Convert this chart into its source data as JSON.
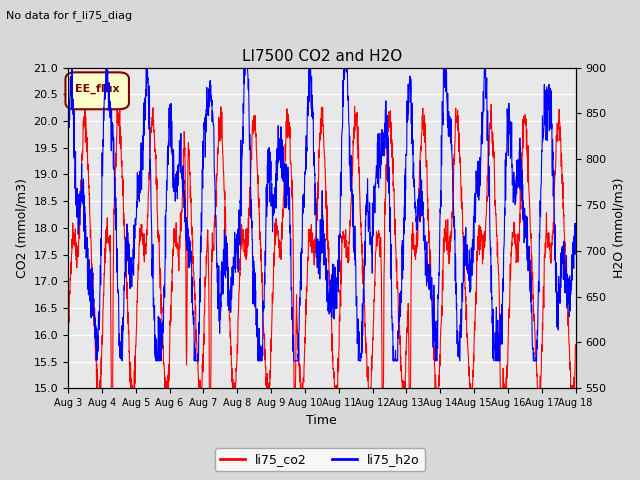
{
  "title": "LI7500 CO2 and H2O",
  "suptitle": "No data for f_li75_diag",
  "xlabel": "Time",
  "ylabel_left": "CO2 (mmol/m3)",
  "ylabel_right": "H2O (mmol/m3)",
  "ylim_left": [
    15.0,
    21.0
  ],
  "ylim_right": [
    550,
    900
  ],
  "yticks_left": [
    15.0,
    15.5,
    16.0,
    16.5,
    17.0,
    17.5,
    18.0,
    18.5,
    19.0,
    19.5,
    20.0,
    20.5,
    21.0
  ],
  "yticks_right": [
    550,
    600,
    650,
    700,
    750,
    800,
    850,
    900
  ],
  "xtick_labels": [
    "Aug 3",
    "Aug 4",
    "Aug 5",
    "Aug 6",
    "Aug 7",
    "Aug 8",
    "Aug 9",
    "Aug 10",
    "Aug 11",
    "Aug 12",
    "Aug 13",
    "Aug 14",
    "Aug 15",
    "Aug 16",
    "Aug 17",
    "Aug 18"
  ],
  "co2_color": "#ff0000",
  "h2o_color": "#0000ff",
  "bg_color": "#d8d8d8",
  "plot_bg_color": "#e8e8e8",
  "grid_color": "#ffffff",
  "legend_box_facecolor": "#ffffcc",
  "legend_box_edgecolor": "#800000",
  "legend_box_text": "EE_flux",
  "legend_box_textcolor": "#800000",
  "line_width": 0.8
}
